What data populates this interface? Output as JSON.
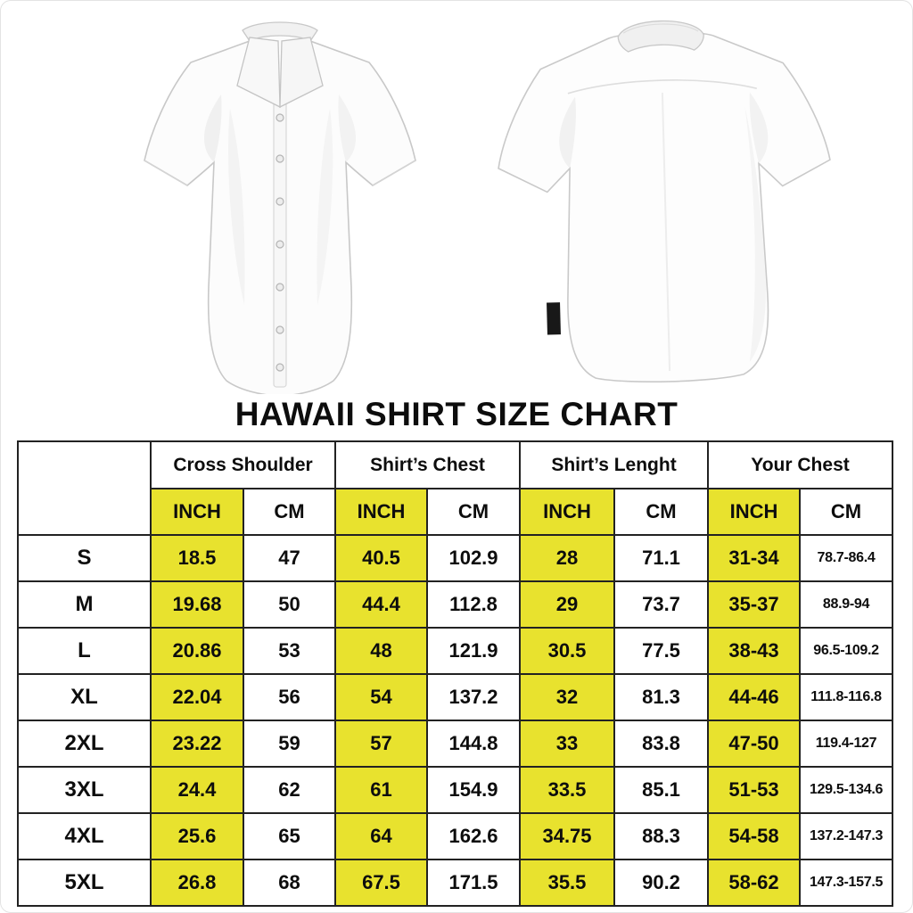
{
  "page": {
    "title": "HAWAII SHIRT SIZE CHART"
  },
  "colors": {
    "highlight": "#e8e22e",
    "border": "#222222",
    "text": "#0d0d0d",
    "background": "#ffffff"
  },
  "shirts": {
    "front_label": "white short-sleeve button-up shirt, front view",
    "back_label": "white short-sleeve button-up shirt, back view"
  },
  "chart_data": {
    "type": "table",
    "title": "HAWAII SHIRT SIZE CHART",
    "size_column_header": "",
    "column_groups": [
      {
        "label": "Cross Shoulder",
        "units": [
          "INCH",
          "CM"
        ]
      },
      {
        "label": "Shirt’s Chest",
        "units": [
          "INCH",
          "CM"
        ]
      },
      {
        "label": "Shirt’s Lenght",
        "units": [
          "INCH",
          "CM"
        ]
      },
      {
        "label": "Your Chest",
        "units": [
          "INCH",
          "CM"
        ]
      }
    ],
    "rows": [
      {
        "size": "S",
        "values": [
          "18.5",
          "47",
          "40.5",
          "102.9",
          "28",
          "71.1",
          "31-34",
          "78.7-86.4"
        ]
      },
      {
        "size": "M",
        "values": [
          "19.68",
          "50",
          "44.4",
          "112.8",
          "29",
          "73.7",
          "35-37",
          "88.9-94"
        ]
      },
      {
        "size": "L",
        "values": [
          "20.86",
          "53",
          "48",
          "121.9",
          "30.5",
          "77.5",
          "38-43",
          "96.5-109.2"
        ]
      },
      {
        "size": "XL",
        "values": [
          "22.04",
          "56",
          "54",
          "137.2",
          "32",
          "81.3",
          "44-46",
          "111.8-116.8"
        ]
      },
      {
        "size": "2XL",
        "values": [
          "23.22",
          "59",
          "57",
          "144.8",
          "33",
          "83.8",
          "47-50",
          "119.4-127"
        ]
      },
      {
        "size": "3XL",
        "values": [
          "24.4",
          "62",
          "61",
          "154.9",
          "33.5",
          "85.1",
          "51-53",
          "129.5-134.6"
        ]
      },
      {
        "size": "4XL",
        "values": [
          "25.6",
          "65",
          "64",
          "162.6",
          "34.75",
          "88.3",
          "54-58",
          "137.2-147.3"
        ]
      },
      {
        "size": "5XL",
        "values": [
          "26.8",
          "68",
          "67.5",
          "171.5",
          "35.5",
          "90.2",
          "58-62",
          "147.3-157.5"
        ]
      }
    ],
    "layout_hints": {
      "inch_columns_highlighted": true,
      "highlight_color": "#e8e22e",
      "grid": true
    }
  }
}
